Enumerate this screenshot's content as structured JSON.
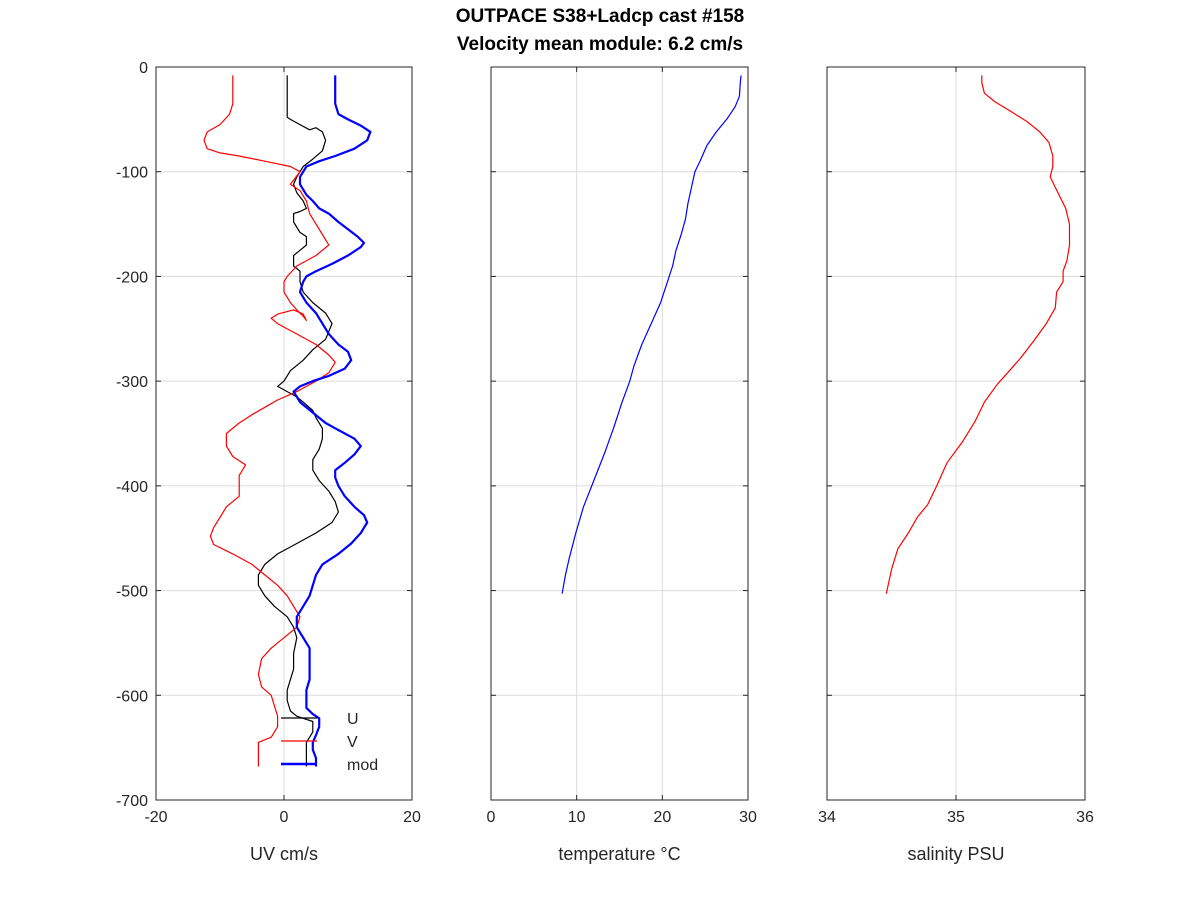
{
  "title": {
    "line1": "OUTPACE S38+Ladcp cast #158",
    "line2": "Velocity mean module:  6.2 cm/s"
  },
  "chart_data": [
    {
      "type": "line",
      "xlabel": "UV cm/s",
      "ylabel": "",
      "xlim": [
        -20,
        20
      ],
      "ylim": [
        -700,
        0
      ],
      "xticks": [
        -20,
        0,
        20
      ],
      "yticks": [
        0,
        -100,
        -200,
        -300,
        -400,
        -500,
        -600,
        -700
      ],
      "grid": true,
      "legend": {
        "placement": "bottom-right",
        "entries": [
          "U",
          "V",
          "mod"
        ]
      },
      "series": [
        {
          "name": "U",
          "color": "#000000",
          "x": [
            0.5,
            0.5,
            0.5,
            0.5,
            1,
            2.5,
            4,
            5,
            6,
            6.5,
            6,
            4.5,
            3,
            2,
            1.5,
            2,
            3,
            3.5,
            2.5,
            1.5,
            1.5,
            2.5,
            3.5,
            3.5,
            2.5,
            1.5,
            1.5,
            2.5,
            2.5,
            3,
            4.5,
            6.5,
            7.5,
            6.5,
            4.5,
            3,
            1,
            0,
            -1,
            0.5,
            2,
            3,
            4.5,
            5,
            6,
            6,
            5.5,
            4.5,
            4.5,
            5.5,
            7,
            8,
            8.5,
            7.5,
            5,
            2,
            -1,
            -3,
            -4,
            -4,
            -3,
            -1.5,
            0.5,
            1.5,
            2,
            1.5,
            1.5,
            1,
            0.5,
            0.5,
            1,
            2,
            4.5,
            4.5,
            3.5,
            3.5,
            3.5,
            3.5,
            3.5
          ],
          "y": [
            -8,
            -20,
            -35,
            -48,
            -50,
            -55,
            -60,
            -58,
            -62,
            -70,
            -80,
            -88,
            -95,
            -105,
            -112,
            -120,
            -128,
            -135,
            -138,
            -140,
            -148,
            -158,
            -162,
            -170,
            -175,
            -180,
            -190,
            -195,
            -205,
            -215,
            -225,
            -235,
            -245,
            -260,
            -270,
            -280,
            -290,
            -300,
            -305,
            -310,
            -315,
            -320,
            -328,
            -335,
            -345,
            -355,
            -365,
            -375,
            -385,
            -395,
            -405,
            -415,
            -425,
            -435,
            -445,
            -455,
            -465,
            -475,
            -485,
            -495,
            -505,
            -515,
            -525,
            -535,
            -545,
            -560,
            -575,
            -585,
            -595,
            -605,
            -615,
            -620,
            -625,
            -635,
            -645,
            -655,
            -665,
            -668,
            -668
          ]
        },
        {
          "name": "V",
          "color": "#ff0000",
          "x": [
            -8,
            -8,
            -8,
            -8.5,
            -10,
            -12,
            -12.5,
            -12,
            -10,
            -7,
            -3,
            1,
            2.5,
            1.5,
            1,
            2.5,
            3.5,
            4,
            5,
            6,
            7,
            5,
            2,
            0.5,
            0,
            0,
            1,
            2,
            3,
            3.5,
            3,
            1.5,
            -1,
            -2,
            -1,
            2,
            5,
            7,
            8,
            7,
            5,
            2,
            -1,
            -3,
            -5,
            -7,
            -9,
            -9,
            -8,
            -6,
            -7,
            -7,
            -7,
            -9,
            -10,
            -11,
            -11.5,
            -11,
            -8,
            -5,
            -3,
            -1,
            0.5,
            1.5,
            2.5,
            2,
            0,
            -2,
            -3.5,
            -4,
            -3.5,
            -2,
            -1.5,
            -1,
            -1,
            -2,
            -4,
            -4,
            -4,
            -4
          ],
          "y": [
            -8,
            -20,
            -35,
            -45,
            -55,
            -62,
            -70,
            -78,
            -82,
            -85,
            -90,
            -95,
            -100,
            -108,
            -112,
            -118,
            -128,
            -140,
            -150,
            -160,
            -170,
            -180,
            -190,
            -200,
            -205,
            -215,
            -225,
            -232,
            -238,
            -242,
            -236,
            -232,
            -236,
            -240,
            -245,
            -255,
            -265,
            -275,
            -282,
            -292,
            -300,
            -310,
            -318,
            -325,
            -332,
            -340,
            -350,
            -362,
            -372,
            -380,
            -390,
            -400,
            -410,
            -420,
            -430,
            -440,
            -448,
            -456,
            -465,
            -475,
            -485,
            -495,
            -505,
            -515,
            -525,
            -535,
            -545,
            -555,
            -565,
            -580,
            -592,
            -600,
            -610,
            -620,
            -630,
            -640,
            -645,
            -648,
            -665,
            -668
          ]
        },
        {
          "name": "mod",
          "color": "#0000ff",
          "x": [
            8,
            8,
            8,
            8.5,
            10,
            12,
            13.5,
            13,
            11,
            8,
            5.5,
            3.5,
            2.5,
            2.5,
            3.5,
            4.5,
            5.5,
            7,
            8.5,
            10,
            11.5,
            12.5,
            12,
            10,
            7.5,
            5,
            3.5,
            3,
            2.5,
            3.5,
            5,
            6,
            7,
            8.5,
            10,
            10.5,
            9.5,
            7,
            4.5,
            2.5,
            1.5,
            2.5,
            4.5,
            6.5,
            8,
            9.5,
            11,
            12,
            11,
            9.5,
            8,
            8,
            8.5,
            9.5,
            11,
            12.5,
            13,
            12,
            10.5,
            8.5,
            6,
            5,
            4.5,
            4,
            3,
            2,
            2,
            3,
            4,
            4,
            4,
            4,
            3.5,
            3.5,
            3.5,
            4.5,
            5.5,
            5.5,
            5,
            4.5,
            4.5,
            5,
            5,
            5
          ],
          "y": [
            -8,
            -20,
            -35,
            -45,
            -50,
            -56,
            -62,
            -70,
            -78,
            -85,
            -90,
            -95,
            -105,
            -112,
            -122,
            -128,
            -135,
            -140,
            -148,
            -155,
            -162,
            -168,
            -172,
            -180,
            -188,
            -195,
            -200,
            -205,
            -215,
            -225,
            -235,
            -245,
            -255,
            -265,
            -272,
            -280,
            -288,
            -295,
            -300,
            -305,
            -310,
            -320,
            -330,
            -340,
            -345,
            -350,
            -355,
            -362,
            -370,
            -378,
            -385,
            -392,
            -400,
            -410,
            -420,
            -428,
            -435,
            -445,
            -455,
            -465,
            -475,
            -485,
            -495,
            -505,
            -515,
            -525,
            -535,
            -545,
            -555,
            -565,
            -575,
            -585,
            -595,
            -605,
            -612,
            -618,
            -622,
            -630,
            -638,
            -645,
            -652,
            -660,
            -665,
            -668
          ]
        }
      ]
    },
    {
      "type": "line",
      "xlabel": "temperature °C",
      "ylabel": "",
      "xlim": [
        0,
        30
      ],
      "ylim": [
        -700,
        0
      ],
      "xticks": [
        0,
        10,
        20,
        30
      ],
      "grid": true,
      "series": [
        {
          "name": "",
          "color": "#0000ff",
          "x": [
            29.2,
            29.1,
            29.0,
            28.5,
            27.5,
            26.3,
            25.2,
            24.4,
            23.8,
            23.4,
            23.0,
            22.7,
            22.2,
            21.6,
            21.2,
            20.6,
            19.8,
            18.7,
            17.6,
            16.7,
            16.2,
            15.3,
            14.3,
            13.2,
            12.0,
            10.8,
            9.9,
            9.1,
            8.7,
            8.3
          ],
          "y": [
            -8,
            -15,
            -28,
            -38,
            -50,
            -62,
            -75,
            -90,
            -100,
            -115,
            -130,
            -145,
            -160,
            -175,
            -190,
            -205,
            -225,
            -245,
            -265,
            -285,
            -300,
            -320,
            -345,
            -370,
            -395,
            -420,
            -445,
            -470,
            -485,
            -503
          ]
        }
      ]
    },
    {
      "type": "line",
      "xlabel": "salinity PSU",
      "ylabel": "",
      "xlim": [
        34,
        36
      ],
      "ylim": [
        -700,
        0
      ],
      "xticks": [
        34,
        35,
        36
      ],
      "grid": true,
      "series": [
        {
          "name": "",
          "color": "#ff0000",
          "x": [
            35.2,
            35.2,
            35.22,
            35.3,
            35.42,
            35.55,
            35.65,
            35.72,
            35.75,
            35.75,
            35.73,
            35.77,
            35.85,
            35.88,
            35.88,
            35.86,
            35.83,
            35.83,
            35.78,
            35.77,
            35.7,
            35.6,
            35.5,
            35.4,
            35.32,
            35.22,
            35.15,
            35.05,
            34.93,
            34.85,
            34.78,
            34.7,
            34.63,
            34.55,
            34.5,
            34.46
          ],
          "y": [
            -8,
            -15,
            -25,
            -33,
            -42,
            -52,
            -62,
            -72,
            -85,
            -95,
            -105,
            -115,
            -135,
            -150,
            -170,
            -185,
            -195,
            -205,
            -215,
            -230,
            -245,
            -262,
            -278,
            -292,
            -303,
            -320,
            -338,
            -358,
            -378,
            -400,
            -418,
            -430,
            -445,
            -460,
            -480,
            -503
          ]
        }
      ]
    }
  ]
}
